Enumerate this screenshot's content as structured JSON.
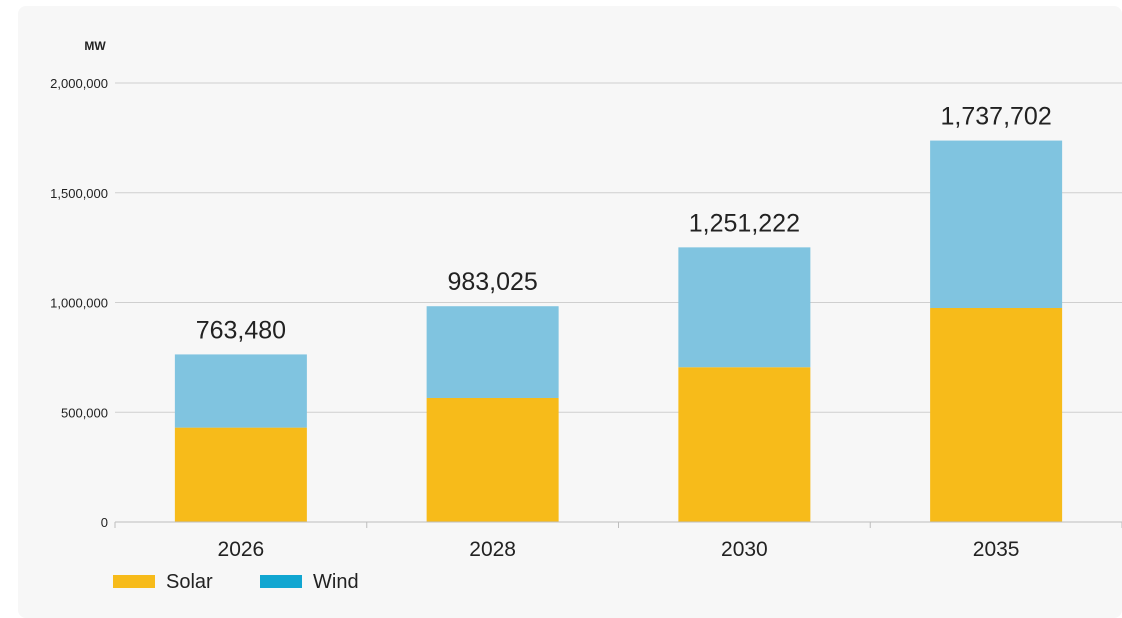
{
  "chart_data": {
    "type": "bar",
    "stacked": true,
    "title": "",
    "xlabel": "",
    "ylabel": "MW",
    "ylim": [
      0,
      2000000
    ],
    "yticks": [
      0,
      500000,
      1000000,
      1500000,
      2000000
    ],
    "ytick_labels": [
      "0",
      "500,000",
      "1,000,000",
      "1,500,000",
      "2,000,000"
    ],
    "categories": [
      "2026",
      "2028",
      "2030",
      "2035"
    ],
    "series": [
      {
        "name": "Solar",
        "color": "#f7bb1a",
        "values": [
          430000,
          565000,
          705000,
          975000
        ]
      },
      {
        "name": "Wind",
        "color": "#80c4e0",
        "values": [
          333480,
          418025,
          546222,
          762702
        ]
      }
    ],
    "totals": [
      763480,
      983025,
      1251222,
      1737702
    ],
    "total_labels": [
      "763,480",
      "983,025",
      "1,251,222",
      "1,737,702"
    ],
    "grid": true,
    "legend": {
      "position": "bottom-left",
      "items": [
        {
          "name": "Solar",
          "color": "#f7bb1a"
        },
        {
          "name": "Wind",
          "color": "#11a6d1"
        }
      ]
    }
  }
}
